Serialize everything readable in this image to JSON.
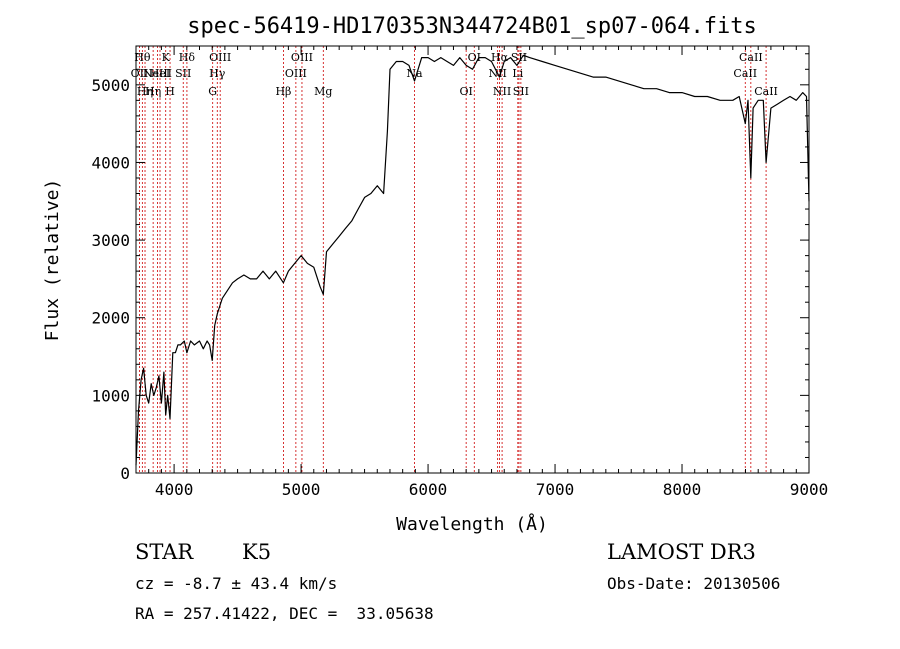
{
  "chart_data": {
    "type": "line",
    "title": "spec-56419-HD170353N344724B01_sp07-064.fits",
    "xlabel": "Wavelength (Å)",
    "ylabel": "Flux (relative)",
    "xlim": [
      3700,
      9000
    ],
    "ylim": [
      0,
      5500
    ],
    "xticks": [
      4000,
      5000,
      6000,
      7000,
      8000,
      9000
    ],
    "yticks": [
      0,
      1000,
      2000,
      3000,
      4000,
      5000
    ],
    "xtick_labels": [
      "4000",
      "5000",
      "6000",
      "7000",
      "8000",
      "9000"
    ],
    "ytick_labels": [
      "0",
      "1000",
      "2000",
      "3000",
      "4000",
      "5000"
    ],
    "grid": false,
    "series": [
      {
        "x": [
          3700,
          3720,
          3740,
          3760,
          3780,
          3800,
          3820,
          3840,
          3860,
          3880,
          3900,
          3920,
          3934,
          3950,
          3968,
          3990,
          4010,
          4030,
          4050,
          4080,
          4101,
          4130,
          4160,
          4200,
          4230,
          4260,
          4280,
          4300,
          4320,
          4340,
          4360,
          4380,
          4420,
          4460,
          4500,
          4550,
          4600,
          4650,
          4700,
          4750,
          4800,
          4861,
          4900,
          4950,
          5000,
          5050,
          5100,
          5150,
          5175,
          5200,
          5250,
          5300,
          5350,
          5400,
          5450,
          5500,
          5550,
          5600,
          5650,
          5680,
          5700,
          5750,
          5800,
          5850,
          5893,
          5950,
          6000,
          6050,
          6100,
          6150,
          6200,
          6250,
          6300,
          6350,
          6400,
          6450,
          6500,
          6563,
          6600,
          6650,
          6700,
          6750,
          6800,
          6900,
          7000,
          7100,
          7200,
          7300,
          7400,
          7500,
          7600,
          7700,
          7800,
          7900,
          8000,
          8100,
          8200,
          8300,
          8400,
          8450,
          8498,
          8520,
          8542,
          8560,
          8600,
          8640,
          8662,
          8700,
          8750,
          8800,
          8850,
          8900,
          8950,
          8980,
          9000
        ],
        "y": [
          100,
          800,
          1200,
          1350,
          1000,
          900,
          1150,
          1000,
          1100,
          1250,
          900,
          1300,
          750,
          1000,
          700,
          1550,
          1550,
          1650,
          1650,
          1700,
          1550,
          1700,
          1650,
          1700,
          1600,
          1700,
          1650,
          1450,
          1900,
          2050,
          2150,
          2250,
          2350,
          2450,
          2500,
          2550,
          2500,
          2500,
          2600,
          2500,
          2600,
          2450,
          2600,
          2700,
          2800,
          2700,
          2650,
          2400,
          2300,
          2850,
          2950,
          3050,
          3150,
          3250,
          3400,
          3550,
          3600,
          3700,
          3600,
          4400,
          5200,
          5300,
          5300,
          5250,
          5050,
          5350,
          5350,
          5300,
          5350,
          5300,
          5250,
          5350,
          5250,
          5200,
          5350,
          5350,
          5300,
          5100,
          5300,
          5350,
          5250,
          5380,
          5350,
          5300,
          5250,
          5200,
          5150,
          5100,
          5100,
          5050,
          5000,
          4950,
          4950,
          4900,
          4900,
          4850,
          4850,
          4800,
          4800,
          4850,
          4500,
          4800,
          3800,
          4700,
          4800,
          4800,
          4000,
          4700,
          4750,
          4800,
          4850,
          4800,
          4900,
          4850,
          3500
        ]
      }
    ],
    "annotations": [
      {
        "x": 3727,
        "label": "OII",
        "row": 1
      },
      {
        "x": 3750,
        "label": "Hθ",
        "row": 0
      },
      {
        "x": 3771,
        "label": "Hη",
        "row": 2
      },
      {
        "x": 3835,
        "label": "Hη",
        "row": 2
      },
      {
        "x": 3869,
        "label": "NeIII",
        "row": 1
      },
      {
        "x": 3889,
        "label": "HeI",
        "row": 1
      },
      {
        "x": 3934,
        "label": "K",
        "row": 0
      },
      {
        "x": 3968,
        "label": "H",
        "row": 2
      },
      {
        "x": 4072,
        "label": "SII",
        "row": 1
      },
      {
        "x": 4101,
        "label": "Hδ",
        "row": 0
      },
      {
        "x": 4304,
        "label": "G",
        "row": 2
      },
      {
        "x": 4340,
        "label": "Hγ",
        "row": 1
      },
      {
        "x": 4363,
        "label": "OIII",
        "row": 0
      },
      {
        "x": 4861,
        "label": "Hβ",
        "row": 2
      },
      {
        "x": 4959,
        "label": "OIII",
        "row": 1
      },
      {
        "x": 5007,
        "label": "OIII",
        "row": 0
      },
      {
        "x": 5175,
        "label": "Mg",
        "row": 2
      },
      {
        "x": 5893,
        "label": "Na",
        "row": 1
      },
      {
        "x": 6300,
        "label": "OI",
        "row": 2
      },
      {
        "x": 6364,
        "label": "OI",
        "row": 0
      },
      {
        "x": 6548,
        "label": "NII",
        "row": 1
      },
      {
        "x": 6563,
        "label": "Hα",
        "row": 0
      },
      {
        "x": 6583,
        "label": "NII",
        "row": 2
      },
      {
        "x": 6707,
        "label": "Li",
        "row": 1
      },
      {
        "x": 6716,
        "label": "SII",
        "row": 0
      },
      {
        "x": 6731,
        "label": "SII",
        "row": 2
      },
      {
        "x": 8498,
        "label": "CaII",
        "row": 1
      },
      {
        "x": 8542,
        "label": "CaII",
        "row": 0
      },
      {
        "x": 8662,
        "label": "CaII",
        "row": 2
      }
    ]
  },
  "info": {
    "object_class": "STAR",
    "subclass": "K5",
    "survey": "LAMOST DR3",
    "cz": "cz = -8.7 ± 43.4 km/s",
    "obs_date": "Obs-Date: 20130506",
    "coords": "RA = 257.41422, DEC =  33.05638"
  },
  "colors": {
    "spectrum": "#000000",
    "line_markers": "#cc0000",
    "axes": "#000000",
    "background": "#ffffff"
  }
}
